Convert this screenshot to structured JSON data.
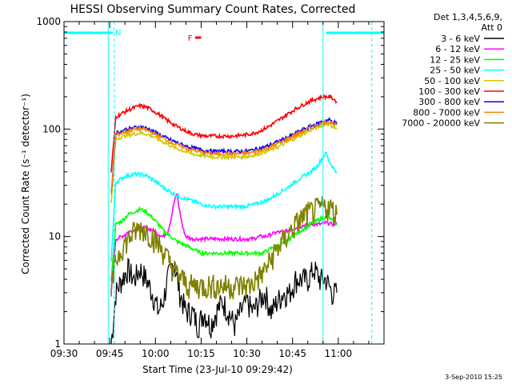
{
  "chart_data": {
    "type": "line",
    "title": "HESSI Observing Summary Count Rates, Corrected",
    "xlabel": "Start Time (23-Jul-10 09:29:42)",
    "ylabel": "Corrected Count Rate (s⁻¹ detector⁻¹)",
    "yscale": "log",
    "ylim": [
      1,
      1000
    ],
    "xlim_minutes_after_0930": [
      0,
      105
    ],
    "x_ticks": [
      "09:30",
      "09:45",
      "10:00",
      "10:15",
      "10:30",
      "10:45",
      "11:00"
    ],
    "y_ticks": [
      "1",
      "10",
      "100",
      "1000"
    ],
    "legend_header": [
      "Det 1,3,4,5,6,9,",
      "Att 0"
    ],
    "legend_position": "right",
    "footer": "3-Sep-2010 15:25",
    "x_unit": "minutes after 09:30",
    "series": [
      {
        "name": "3 - 6 keV",
        "color": "#000000",
        "x": [
          15.5,
          17,
          19,
          21,
          23,
          25,
          27,
          29,
          31,
          32.5,
          34,
          36,
          38,
          40,
          42,
          44,
          46,
          48,
          50,
          52,
          54,
          56,
          58,
          60,
          62,
          64,
          66,
          68,
          70,
          72,
          74,
          76,
          78,
          80,
          82,
          84,
          86,
          88,
          89.5
        ],
        "y": [
          1,
          3,
          4,
          5,
          4,
          5,
          4,
          3,
          2,
          2.5,
          4,
          6,
          3,
          2,
          2,
          1.5,
          2,
          1.5,
          2,
          2.5,
          2,
          1.5,
          2,
          2.5,
          2,
          2.5,
          3,
          2,
          2.5,
          3,
          3,
          4,
          4,
          4,
          5,
          4,
          4,
          3,
          3
        ]
      },
      {
        "name": "6 - 12 keV",
        "color": "#ff00ff",
        "x": [
          15.5,
          17,
          19,
          21,
          23,
          25,
          27,
          29,
          31,
          32.5,
          34,
          35,
          36,
          37,
          38,
          39,
          40,
          42,
          44,
          46,
          48,
          50,
          52,
          54,
          56,
          58,
          60,
          62,
          64,
          66,
          68,
          70,
          72,
          74,
          76,
          78,
          80,
          82,
          84,
          86,
          88,
          89.5
        ],
        "y": [
          3,
          9.5,
          10,
          11,
          11.5,
          12,
          12,
          11.5,
          10.5,
          10,
          11,
          14,
          20,
          25,
          17,
          12,
          10,
          9.5,
          9.5,
          9.5,
          9.5,
          9.5,
          9.5,
          9.5,
          9.5,
          9.5,
          9.5,
          9.5,
          10,
          10,
          10.5,
          11,
          11,
          11.5,
          12,
          12.5,
          13,
          13,
          13,
          13.5,
          13,
          13
        ]
      },
      {
        "name": "12 - 25 keV",
        "color": "#00ff00",
        "x": [
          15.5,
          17,
          19,
          21,
          23,
          25,
          27,
          29,
          31,
          33,
          35,
          37,
          39,
          41,
          43,
          45,
          47,
          49,
          51,
          53,
          55,
          57,
          59,
          61,
          63,
          65,
          67,
          69,
          71,
          73,
          75,
          77,
          79,
          81,
          83,
          85,
          87,
          88,
          89.5
        ],
        "y": [
          4,
          13,
          14,
          16,
          17,
          18,
          17,
          15,
          13,
          11,
          10,
          9,
          8.5,
          8,
          7.5,
          7,
          7,
          7,
          7,
          7,
          7,
          7,
          7,
          7,
          7,
          7,
          7.5,
          8,
          8.5,
          9,
          10,
          11,
          12,
          13,
          14,
          15,
          15,
          14,
          13
        ]
      },
      {
        "name": "25 - 50 keV",
        "color": "#00ffff",
        "x": [
          15.5,
          17,
          19,
          21,
          23,
          25,
          27,
          29,
          31,
          33,
          35,
          37,
          39,
          41,
          43,
          45,
          47,
          49,
          51,
          53,
          55,
          57,
          59,
          61,
          63,
          65,
          67,
          69,
          71,
          73,
          75,
          77,
          79,
          81,
          83,
          85,
          86,
          87,
          88,
          89.5
        ],
        "y": [
          6,
          32,
          35,
          37,
          38,
          38,
          37,
          34,
          31,
          28,
          26,
          24,
          23,
          22,
          21,
          20,
          19.5,
          19,
          19,
          19,
          19,
          19,
          19,
          19.5,
          20,
          21,
          22,
          24,
          26,
          28,
          31,
          34,
          37,
          40,
          45,
          55,
          60,
          50,
          45,
          40
        ]
      },
      {
        "name": "50 - 100 keV",
        "color": "#cccc00",
        "x": [
          15.5,
          17,
          19,
          21,
          23,
          25,
          27,
          29,
          31,
          33,
          35,
          37,
          39,
          41,
          43,
          45,
          47,
          49,
          51,
          53,
          55,
          57,
          59,
          61,
          63,
          65,
          67,
          69,
          71,
          73,
          75,
          77,
          79,
          81,
          83,
          85,
          87,
          88,
          89.5
        ],
        "y": [
          20,
          80,
          85,
          88,
          90,
          92,
          90,
          86,
          80,
          75,
          70,
          66,
          63,
          60,
          58,
          57,
          56,
          55,
          55,
          55,
          55,
          55,
          55,
          56,
          58,
          60,
          63,
          66,
          70,
          75,
          80,
          86,
          92,
          98,
          104,
          110,
          112,
          106,
          100
        ]
      },
      {
        "name": "100 - 300 keV",
        "color": "#ff0000",
        "x": [
          15.5,
          17,
          19,
          21,
          23,
          25,
          27,
          29,
          31,
          33,
          35,
          37,
          39,
          41,
          43,
          45,
          47,
          49,
          51,
          53,
          55,
          57,
          59,
          61,
          63,
          65,
          67,
          69,
          71,
          73,
          75,
          77,
          79,
          81,
          83,
          85,
          87,
          88,
          89.5
        ],
        "y": [
          40,
          130,
          140,
          150,
          158,
          165,
          160,
          150,
          138,
          125,
          115,
          106,
          99,
          93,
          89,
          87,
          86,
          86,
          86,
          86,
          86,
          87,
          88,
          90,
          93,
          98,
          105,
          114,
          124,
          136,
          148,
          160,
          172,
          183,
          192,
          200,
          200,
          195,
          180
        ]
      },
      {
        "name": "300 - 800 keV",
        "color": "#0000ff",
        "x": [
          15.5,
          17,
          19,
          21,
          23,
          25,
          27,
          29,
          31,
          33,
          35,
          37,
          39,
          41,
          43,
          45,
          47,
          49,
          51,
          53,
          55,
          57,
          59,
          61,
          63,
          65,
          67,
          69,
          71,
          73,
          75,
          77,
          79,
          81,
          83,
          85,
          87,
          88,
          89.5
        ],
        "y": [
          25,
          92,
          96,
          100,
          103,
          105,
          102,
          96,
          90,
          84,
          79,
          75,
          71,
          68,
          66,
          64,
          63,
          62,
          62,
          62,
          62,
          62,
          62,
          63,
          65,
          67,
          70,
          74,
          78,
          83,
          88,
          94,
          100,
          106,
          112,
          118,
          122,
          118,
          112
        ]
      },
      {
        "name": "800 - 7000 keV",
        "color": "#ff8000",
        "x": [
          15.5,
          17,
          19,
          21,
          23,
          25,
          27,
          29,
          31,
          33,
          35,
          37,
          39,
          41,
          43,
          45,
          47,
          49,
          51,
          53,
          55,
          57,
          59,
          61,
          63,
          65,
          67,
          69,
          71,
          73,
          75,
          77,
          79,
          81,
          83,
          85,
          87,
          88,
          89.5
        ],
        "y": [
          24,
          88,
          92,
          96,
          99,
          101,
          98,
          93,
          87,
          81,
          76,
          72,
          68,
          65,
          63,
          61,
          60,
          59,
          59,
          59,
          59,
          59,
          59,
          60,
          62,
          64,
          67,
          71,
          75,
          80,
          85,
          91,
          97,
          103,
          109,
          114,
          118,
          114,
          108
        ]
      },
      {
        "name": "7000 - 20000 keV",
        "color": "#808000",
        "x": [
          15.5,
          17,
          19,
          21,
          23,
          25,
          27,
          29,
          31,
          33,
          35,
          37,
          39,
          41,
          43,
          45,
          47,
          49,
          51,
          53,
          55,
          57,
          59,
          61,
          63,
          65,
          67,
          69,
          71,
          73,
          75,
          77,
          79,
          81,
          83,
          85,
          87,
          88,
          89.5
        ],
        "y": [
          3,
          6,
          8,
          9.5,
          11,
          12,
          11.5,
          10,
          8.5,
          7,
          5.5,
          4.5,
          4,
          3.5,
          3.5,
          3.5,
          3.5,
          3.5,
          3.5,
          3.5,
          3.5,
          3.5,
          3.5,
          3.5,
          4,
          4.5,
          5.5,
          7,
          8.5,
          10,
          12,
          14,
          16,
          17,
          18,
          19,
          19,
          18,
          16
        ]
      }
    ],
    "annotations": [
      {
        "label": "N",
        "color": "#00ffff",
        "intervals": [
          [
            0,
            16
          ],
          [
            86,
            105
          ]
        ]
      },
      {
        "label": "F",
        "color": "#ff0000",
        "intervals": [
          [
            43,
            45
          ]
        ]
      }
    ],
    "background_markers": {
      "color": "#00ffff",
      "x": [
        0,
        14.5,
        16.5,
        85,
        101
      ]
    }
  }
}
